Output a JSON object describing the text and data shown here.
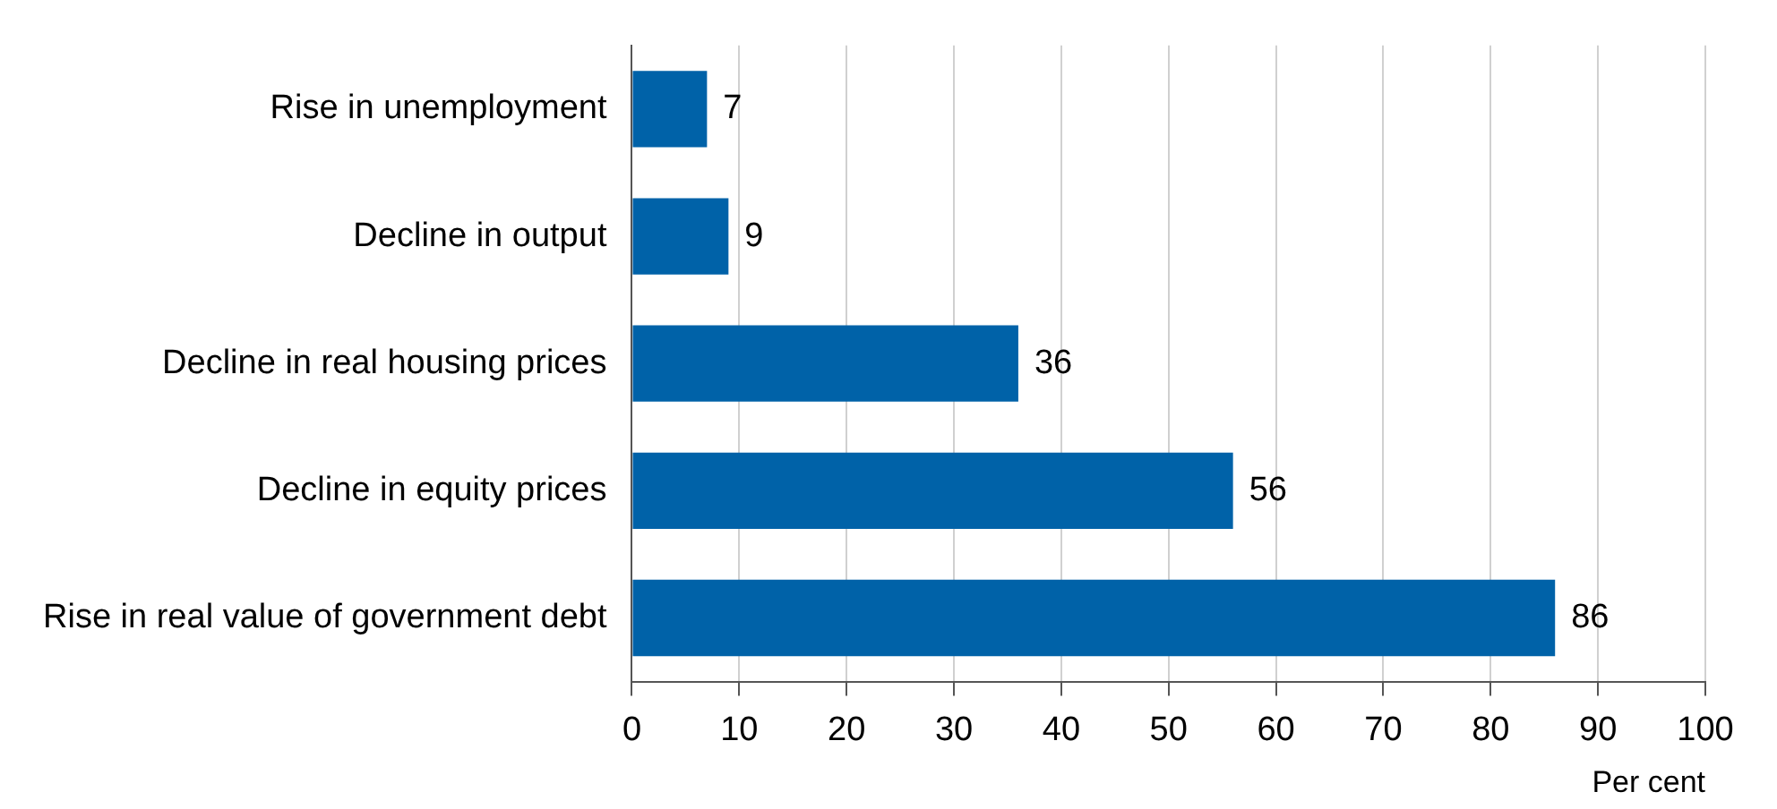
{
  "chart_data": {
    "type": "bar",
    "orientation": "horizontal",
    "categories": [
      "Rise in unemployment",
      "Decline in output",
      "Decline in real housing prices",
      "Decline in equity prices",
      "Rise in real value of government debt"
    ],
    "values": [
      7,
      9,
      36,
      56,
      86
    ],
    "color": "#0062a8",
    "xlim": [
      0,
      100
    ],
    "xticks": [
      0,
      10,
      20,
      30,
      40,
      50,
      60,
      70,
      80,
      90,
      100
    ],
    "xlabel": "Per cent",
    "grid": "x",
    "data_labels": true,
    "legend": false
  }
}
